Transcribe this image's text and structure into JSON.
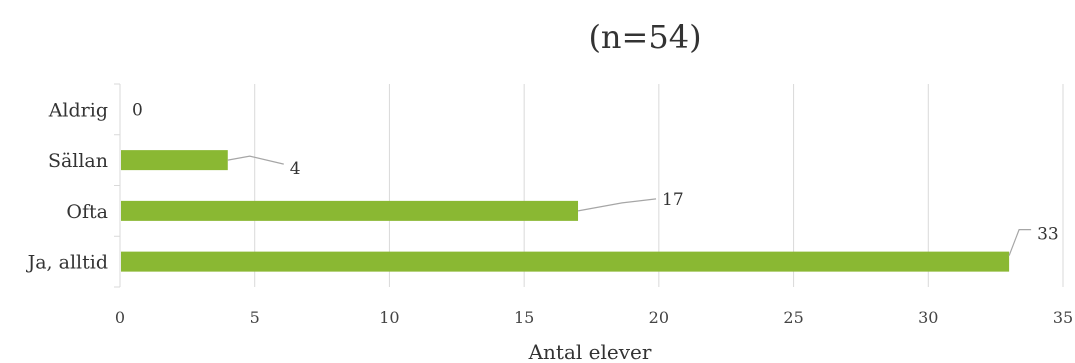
{
  "chart_data": {
    "type": "bar",
    "orientation": "horizontal",
    "title": "(n=54)",
    "xlabel": "Antal elever",
    "ylabel": "",
    "categories": [
      "Aldrig",
      "Sällan",
      "Ofta",
      "Ja, alltid"
    ],
    "values": [
      0,
      4,
      17,
      33
    ],
    "data_labels": [
      "0",
      "4",
      "17",
      "33"
    ],
    "xlim": [
      0,
      35
    ],
    "xticks": [
      0,
      5,
      10,
      15,
      20,
      25,
      30,
      35
    ],
    "xtick_labels": [
      "0",
      "5",
      "10",
      "15",
      "20",
      "25",
      "30",
      "35"
    ],
    "bar_color": "#8ab833",
    "grid": "vertical",
    "legend": "none"
  }
}
